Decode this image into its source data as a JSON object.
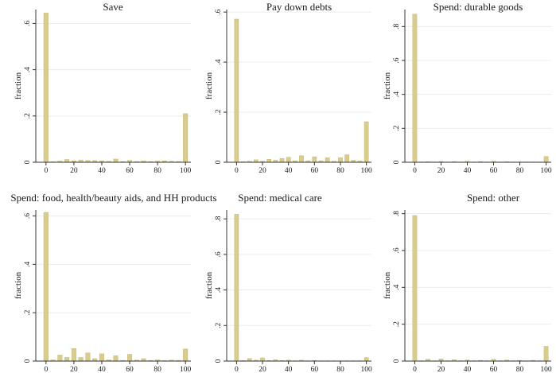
{
  "figure": {
    "bar_color": "#d8cd8d",
    "bar_stroke": "#bfb06a"
  },
  "chart_data": [
    {
      "type": "bar",
      "title": "Save",
      "xlabel": "",
      "ylabel": "fraction",
      "xlim": [
        0,
        100
      ],
      "ylim": [
        0,
        0.66
      ],
      "xticks": [
        0,
        20,
        40,
        60,
        80,
        100
      ],
      "yticks": [
        0,
        0.2,
        0.4,
        0.6
      ],
      "ytick_labels": [
        "0",
        ".2",
        ".4",
        ".6"
      ],
      "grid": true,
      "x": [
        0,
        5,
        10,
        15,
        20,
        25,
        30,
        35,
        40,
        45,
        50,
        55,
        60,
        65,
        70,
        75,
        80,
        85,
        90,
        95,
        100
      ],
      "values": [
        0.645,
        0.002,
        0.005,
        0.012,
        0.006,
        0.01,
        0.008,
        0.007,
        0.006,
        0.004,
        0.014,
        0.003,
        0.008,
        0.003,
        0.006,
        0.003,
        0.005,
        0.006,
        0.004,
        0.003,
        0.21
      ]
    },
    {
      "type": "bar",
      "title": "Pay down debts",
      "xlabel": "",
      "ylabel": "fraction",
      "xlim": [
        0,
        100
      ],
      "ylim": [
        0,
        0.61
      ],
      "xticks": [
        0,
        20,
        40,
        60,
        80,
        100
      ],
      "yticks": [
        0,
        0.2,
        0.4,
        0.6
      ],
      "ytick_labels": [
        "0",
        ".2",
        ".4",
        ".6"
      ],
      "grid": true,
      "x": [
        0,
        5,
        10,
        15,
        20,
        25,
        30,
        35,
        40,
        45,
        50,
        55,
        60,
        65,
        70,
        75,
        80,
        85,
        90,
        95,
        100
      ],
      "values": [
        0.572,
        0.002,
        0.004,
        0.01,
        0.004,
        0.012,
        0.008,
        0.015,
        0.02,
        0.006,
        0.026,
        0.006,
        0.022,
        0.006,
        0.018,
        0.004,
        0.018,
        0.03,
        0.008,
        0.005,
        0.162
      ]
    },
    {
      "type": "bar",
      "title": "Spend: durable goods",
      "xlabel": "",
      "ylabel": "fraction",
      "xlim": [
        0,
        100
      ],
      "ylim": [
        0,
        0.9
      ],
      "xticks": [
        0,
        20,
        40,
        60,
        80,
        100
      ],
      "yticks": [
        0,
        0.2,
        0.4,
        0.6,
        0.8
      ],
      "ytick_labels": [
        "0",
        ".2",
        ".4",
        ".6",
        ".8"
      ],
      "grid": true,
      "x": [
        0,
        5,
        10,
        15,
        20,
        25,
        30,
        35,
        40,
        45,
        50,
        55,
        60,
        65,
        70,
        75,
        80,
        85,
        90,
        95,
        100
      ],
      "values": [
        0.873,
        0.002,
        0.003,
        0.002,
        0.005,
        0.002,
        0.004,
        0.002,
        0.006,
        0.002,
        0.004,
        0.002,
        0.006,
        0.002,
        0.003,
        0.002,
        0.002,
        0.002,
        0.002,
        0.002,
        0.034
      ]
    },
    {
      "type": "bar",
      "title": "Spend: food, health/beauty aids, and HH products",
      "xlabel": "",
      "ylabel": "fraction",
      "xlim": [
        0,
        100
      ],
      "ylim": [
        0,
        0.625
      ],
      "xticks": [
        0,
        20,
        40,
        60,
        80,
        100
      ],
      "yticks": [
        0,
        0.2,
        0.4,
        0.6
      ],
      "ytick_labels": [
        "0",
        ".2",
        ".4",
        ".6"
      ],
      "grid": true,
      "x": [
        0,
        5,
        10,
        15,
        20,
        25,
        30,
        35,
        40,
        45,
        50,
        55,
        60,
        65,
        70,
        75,
        80,
        85,
        90,
        95,
        100
      ],
      "values": [
        0.615,
        0.005,
        0.025,
        0.015,
        0.052,
        0.015,
        0.034,
        0.01,
        0.03,
        0.005,
        0.022,
        0.003,
        0.028,
        0.004,
        0.01,
        0.003,
        0.005,
        0.002,
        0.004,
        0.003,
        0.05
      ]
    },
    {
      "type": "bar",
      "title": "Spend: medical care",
      "xlabel": "",
      "ylabel": "fraction",
      "xlim": [
        0,
        100
      ],
      "ylim": [
        0,
        0.85
      ],
      "xticks": [
        0,
        20,
        40,
        60,
        80,
        100
      ],
      "yticks": [
        0,
        0.2,
        0.4,
        0.6,
        0.8
      ],
      "ytick_labels": [
        "0",
        ".2",
        ".4",
        ".6",
        ".8"
      ],
      "grid": true,
      "x": [
        0,
        5,
        10,
        15,
        20,
        25,
        30,
        35,
        40,
        45,
        50,
        55,
        60,
        65,
        70,
        75,
        80,
        85,
        90,
        95,
        100
      ],
      "values": [
        0.826,
        0.003,
        0.015,
        0.005,
        0.018,
        0.003,
        0.008,
        0.003,
        0.006,
        0.002,
        0.005,
        0.002,
        0.004,
        0.002,
        0.002,
        0.002,
        0.002,
        0.002,
        0.002,
        0.002,
        0.02
      ]
    },
    {
      "type": "bar",
      "title": "Spend: other",
      "xlabel": "",
      "ylabel": "fraction",
      "xlim": [
        0,
        100
      ],
      "ylim": [
        0,
        0.82
      ],
      "xticks": [
        0,
        20,
        40,
        60,
        80,
        100
      ],
      "yticks": [
        0,
        0.2,
        0.4,
        0.6,
        0.8
      ],
      "ytick_labels": [
        "0",
        ".2",
        ".4",
        ".6",
        ".8"
      ],
      "grid": true,
      "x": [
        0,
        5,
        10,
        15,
        20,
        25,
        30,
        35,
        40,
        45,
        50,
        55,
        60,
        65,
        70,
        75,
        80,
        85,
        90,
        95,
        100
      ],
      "values": [
        0.79,
        0.002,
        0.01,
        0.002,
        0.012,
        0.002,
        0.008,
        0.002,
        0.006,
        0.002,
        0.004,
        0.002,
        0.01,
        0.002,
        0.006,
        0.002,
        0.004,
        0.002,
        0.004,
        0.002,
        0.08
      ]
    }
  ]
}
